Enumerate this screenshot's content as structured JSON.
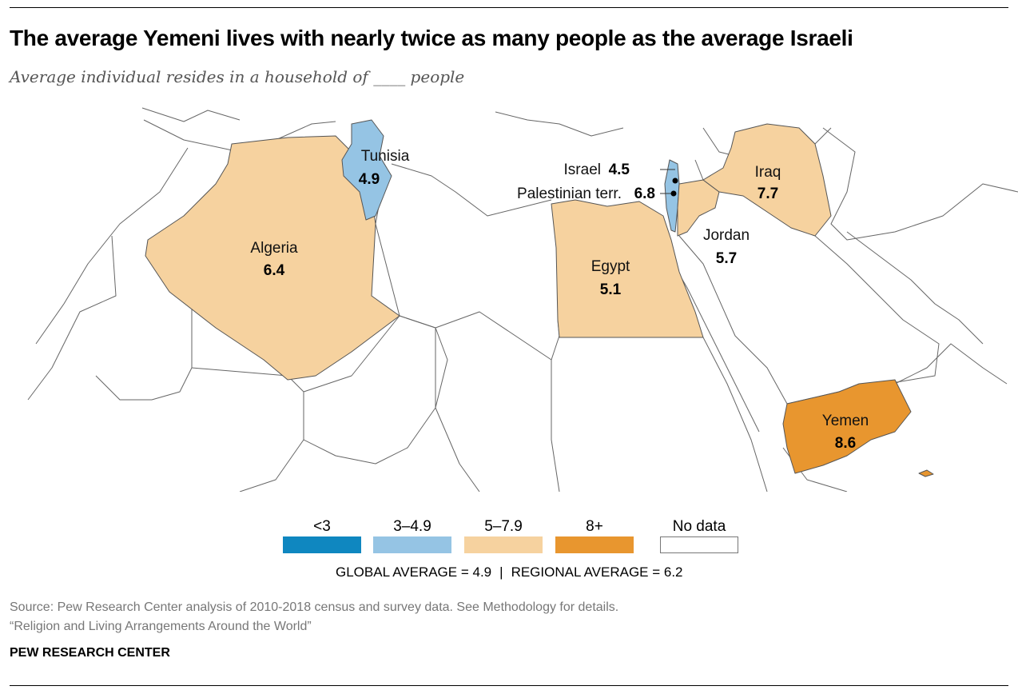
{
  "header": {
    "title": "The average Yemeni lives with nearly twice as many people as the average Israeli",
    "subtitle": "Average individual resides in a household of ____ people"
  },
  "colors": {
    "lt3": "#0f87c0",
    "b3_49": "#95c4e4",
    "b5_79": "#f6d29f",
    "b8plus": "#e8962f",
    "nodata": "#ffffff",
    "border": "#555555"
  },
  "map": {
    "countries": [
      {
        "name": "Tunisia",
        "value": "4.9",
        "bin": "3–4.9"
      },
      {
        "name": "Algeria",
        "value": "6.4",
        "bin": "5–7.9"
      },
      {
        "name": "Egypt",
        "value": "5.1",
        "bin": "5–7.9"
      },
      {
        "name": "Israel",
        "value": "4.5",
        "bin": "3–4.9"
      },
      {
        "name": "Palestinian terr.",
        "value": "6.8",
        "bin": "5–7.9"
      },
      {
        "name": "Jordan",
        "value": "5.7",
        "bin": "5–7.9"
      },
      {
        "name": "Iraq",
        "value": "7.7",
        "bin": "5–7.9"
      },
      {
        "name": "Yemen",
        "value": "8.6",
        "bin": "8+"
      }
    ]
  },
  "legend": {
    "items": [
      {
        "label": "<3",
        "color": "#0f87c0"
      },
      {
        "label": "3–4.9",
        "color": "#95c4e4"
      },
      {
        "label": "5–7.9",
        "color": "#f6d29f"
      },
      {
        "label": "8+",
        "color": "#e8962f"
      },
      {
        "label": "No data",
        "color": "#ffffff"
      }
    ],
    "global_average": "GLOBAL AVERAGE = 4.9",
    "separator": "|",
    "regional_average": "REGIONAL AVERAGE = 6.2"
  },
  "footer": {
    "source": "Source: Pew Research Center analysis of 2010-2018 census and survey data. See Methodology for details.",
    "report": "“Religion and Living Arrangements Around the World”",
    "brand": "PEW RESEARCH CENTER"
  }
}
